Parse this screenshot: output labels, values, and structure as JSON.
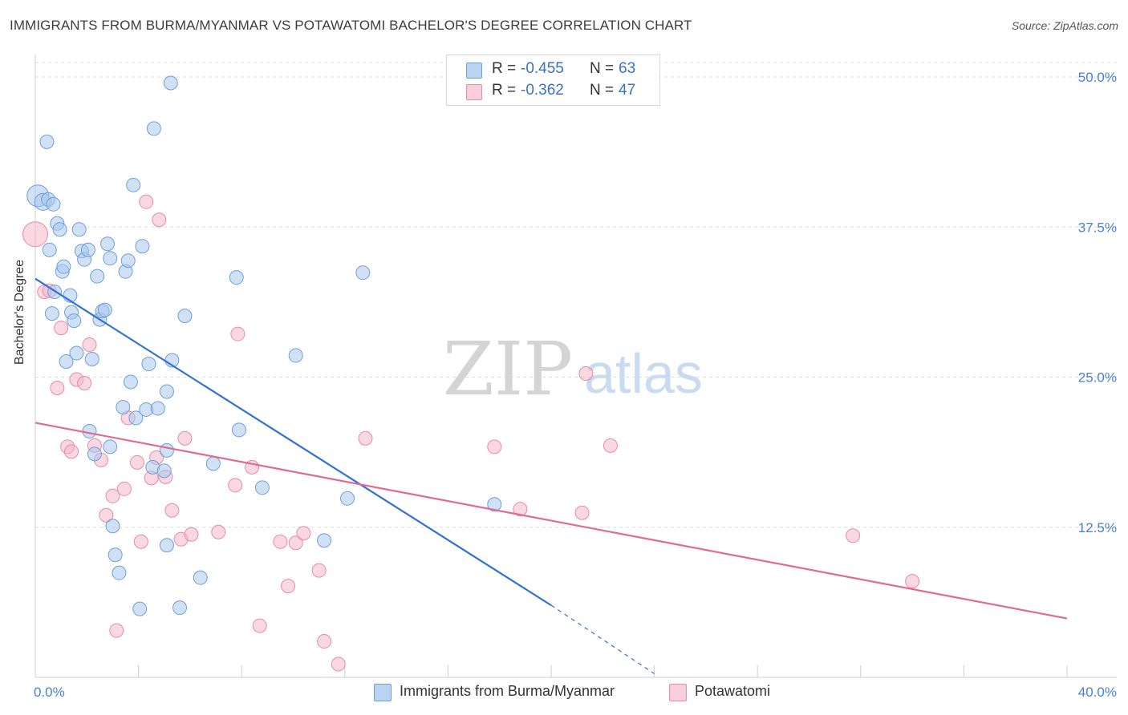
{
  "title": "IMMIGRANTS FROM BURMA/MYANMAR VS POTAWATOMI BACHELOR'S DEGREE CORRELATION CHART",
  "source": "Source: ZipAtlas.com",
  "watermark": {
    "zip": "ZIP",
    "atlas": "atlas"
  },
  "colors": {
    "blue_fill": "#a9c9ee",
    "blue_stroke": "#6f9fd8",
    "blue_line": "#2f72d4",
    "pink_fill": "#f4b8cb",
    "pink_stroke": "#e88aa8",
    "pink_line": "#e06a93",
    "tick_label": "#4a7fd0",
    "grid": "#dedede"
  },
  "stats": [
    {
      "swatch": "blue",
      "r_label": "R =",
      "r_value": "-0.455",
      "n_label": "N =",
      "n_value": "63"
    },
    {
      "swatch": "pink",
      "r_label": "R =",
      "r_value": "-0.362",
      "n_label": "N =",
      "n_value": "47"
    }
  ],
  "chart_data": {
    "type": "scatter",
    "title": "IMMIGRANTS FROM BURMA/MYANMAR VS POTAWATOMI BACHELOR'S DEGREE CORRELATION CHART",
    "xlabel": "",
    "ylabel": "Bachelor's Degree",
    "xlim": [
      0,
      40
    ],
    "ylim": [
      0,
      50
    ],
    "x_tick_labels": [
      "0.0%",
      "40.0%"
    ],
    "y_ticks": [
      12.5,
      25.0,
      37.5,
      50.0
    ],
    "y_tick_labels": [
      "12.5%",
      "25.0%",
      "37.5%",
      "50.0%"
    ],
    "grid": true,
    "legend_position": "bottom",
    "series": [
      {
        "name": "Immigrants from Burma/Myanmar",
        "color": "blue",
        "trend": {
          "x": [
            0.0,
            20.0
          ],
          "y": [
            33.2,
            6.0
          ]
        },
        "trend_dashed": {
          "x": [
            20.0,
            24.0
          ],
          "y": [
            6.0,
            0.3
          ]
        },
        "points": [
          [
            0.1,
            40.1,
            12
          ],
          [
            0.3,
            39.6,
            9
          ],
          [
            0.5,
            39.8,
            7
          ],
          [
            0.7,
            39.4,
            7
          ],
          [
            0.45,
            44.6,
            7
          ],
          [
            0.55,
            35.6,
            7
          ],
          [
            0.65,
            30.3,
            7
          ],
          [
            0.75,
            32.1,
            7
          ],
          [
            0.85,
            37.8,
            7
          ],
          [
            0.95,
            37.3,
            7
          ],
          [
            1.05,
            33.8,
            7
          ],
          [
            1.1,
            34.2,
            7
          ],
          [
            1.2,
            26.3,
            7
          ],
          [
            1.35,
            31.8,
            7
          ],
          [
            1.4,
            30.4,
            7
          ],
          [
            1.5,
            29.7,
            7
          ],
          [
            1.6,
            27.0,
            7
          ],
          [
            1.7,
            37.3,
            7
          ],
          [
            1.8,
            35.5,
            7
          ],
          [
            1.9,
            34.8,
            7
          ],
          [
            2.05,
            35.6,
            7
          ],
          [
            2.1,
            20.5,
            7
          ],
          [
            2.2,
            26.5,
            7
          ],
          [
            2.3,
            18.6,
            7
          ],
          [
            2.4,
            33.4,
            7
          ],
          [
            2.5,
            29.8,
            7
          ],
          [
            2.6,
            30.5,
            7
          ],
          [
            2.7,
            30.6,
            7
          ],
          [
            2.8,
            36.1,
            7
          ],
          [
            2.9,
            34.9,
            7
          ],
          [
            3.1,
            10.2,
            7
          ],
          [
            3.25,
            8.7,
            7
          ],
          [
            3.4,
            22.5,
            7
          ],
          [
            3.5,
            33.8,
            7
          ],
          [
            3.6,
            34.7,
            7
          ],
          [
            3.7,
            24.6,
            7
          ],
          [
            3.8,
            41.0,
            7
          ],
          [
            3.9,
            21.6,
            7
          ],
          [
            4.05,
            5.7,
            7
          ],
          [
            4.15,
            35.9,
            7
          ],
          [
            4.3,
            22.3,
            7
          ],
          [
            4.4,
            26.1,
            7
          ],
          [
            4.55,
            17.5,
            7
          ],
          [
            4.6,
            45.7,
            7
          ],
          [
            4.75,
            22.4,
            7
          ],
          [
            5.0,
            17.2,
            7
          ],
          [
            5.1,
            23.8,
            7
          ],
          [
            5.25,
            49.5,
            7
          ],
          [
            5.1,
            18.9,
            7
          ],
          [
            2.9,
            19.2,
            7
          ],
          [
            3.0,
            12.6,
            7
          ],
          [
            5.1,
            11.0,
            7
          ],
          [
            5.6,
            5.8,
            7
          ],
          [
            5.3,
            26.4,
            7
          ],
          [
            5.8,
            30.1,
            7
          ],
          [
            6.4,
            8.3,
            7
          ],
          [
            6.9,
            17.8,
            7
          ],
          [
            7.8,
            33.3,
            7
          ],
          [
            7.9,
            20.6,
            7
          ],
          [
            8.8,
            15.8,
            7
          ],
          [
            10.1,
            26.8,
            7
          ],
          [
            11.2,
            11.4,
            7
          ],
          [
            12.1,
            14.9,
            7
          ],
          [
            12.7,
            33.7,
            7
          ],
          [
            17.8,
            14.4,
            7
          ]
        ]
      },
      {
        "name": "Potawatomi",
        "color": "pink",
        "trend": {
          "x": [
            0.0,
            40.0
          ],
          "y": [
            21.2,
            4.9
          ]
        },
        "points": [
          [
            0.0,
            36.9,
            14
          ],
          [
            0.35,
            32.1,
            7
          ],
          [
            0.55,
            32.2,
            7
          ],
          [
            0.85,
            24.1,
            7
          ],
          [
            1.0,
            29.1,
            7
          ],
          [
            1.25,
            19.2,
            7
          ],
          [
            1.4,
            18.8,
            7
          ],
          [
            1.6,
            24.8,
            7
          ],
          [
            1.9,
            24.5,
            7
          ],
          [
            2.1,
            27.7,
            7
          ],
          [
            2.3,
            19.3,
            7
          ],
          [
            2.55,
            18.1,
            7
          ],
          [
            2.75,
            13.5,
            7
          ],
          [
            3.0,
            15.1,
            7
          ],
          [
            3.15,
            3.9,
            7
          ],
          [
            3.45,
            15.7,
            7
          ],
          [
            3.6,
            21.6,
            7
          ],
          [
            3.95,
            17.9,
            7
          ],
          [
            4.1,
            11.3,
            7
          ],
          [
            4.3,
            39.6,
            7
          ],
          [
            4.5,
            16.6,
            7
          ],
          [
            4.7,
            18.3,
            7
          ],
          [
            4.8,
            38.1,
            7
          ],
          [
            5.05,
            16.7,
            7
          ],
          [
            5.3,
            13.9,
            7
          ],
          [
            5.65,
            11.5,
            7
          ],
          [
            5.8,
            19.9,
            7
          ],
          [
            6.05,
            11.9,
            7
          ],
          [
            7.1,
            12.1,
            7
          ],
          [
            7.75,
            16.0,
            7
          ],
          [
            7.85,
            28.6,
            7
          ],
          [
            8.4,
            17.5,
            7
          ],
          [
            8.7,
            4.3,
            7
          ],
          [
            9.5,
            11.3,
            7
          ],
          [
            9.8,
            7.6,
            7
          ],
          [
            10.1,
            11.2,
            7
          ],
          [
            10.4,
            12.0,
            7
          ],
          [
            11.0,
            8.9,
            7
          ],
          [
            11.2,
            3.0,
            7
          ],
          [
            11.75,
            1.1,
            7
          ],
          [
            12.8,
            19.9,
            7
          ],
          [
            17.8,
            19.2,
            7
          ],
          [
            18.8,
            14.0,
            7
          ],
          [
            21.2,
            13.7,
            7
          ],
          [
            21.35,
            25.3,
            7
          ],
          [
            22.3,
            19.3,
            7
          ],
          [
            31.7,
            11.8,
            7
          ],
          [
            34.0,
            8.0,
            7
          ]
        ]
      }
    ]
  }
}
